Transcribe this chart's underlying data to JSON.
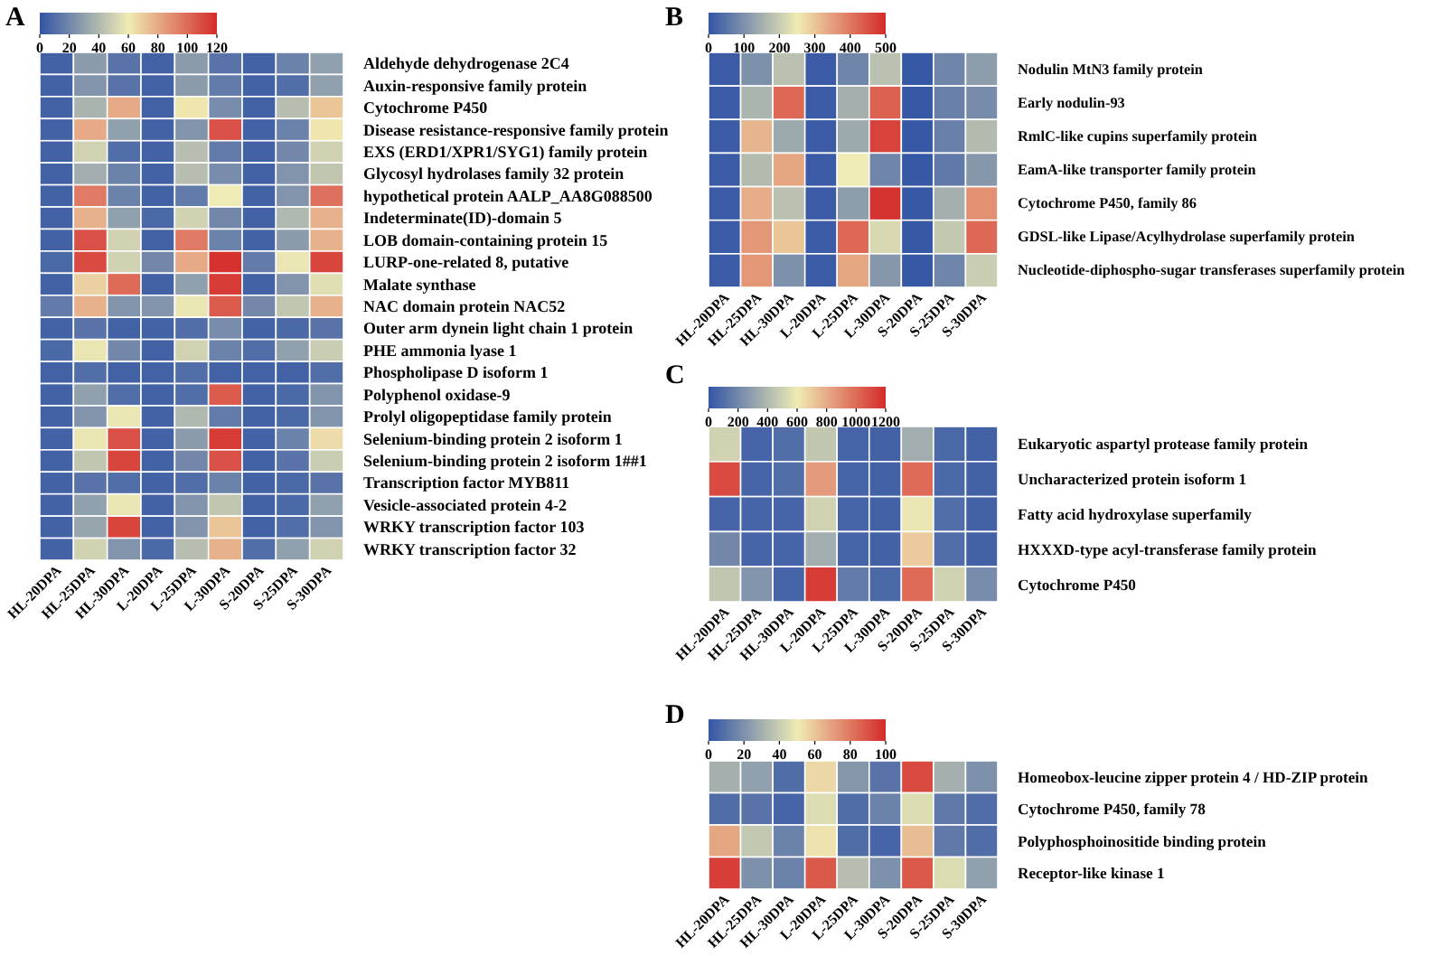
{
  "chart_data": [
    {
      "type": "heatmap",
      "title": "A",
      "categories": [
        "HL-20DPA",
        "HL-25DPA",
        "HL-30DPA",
        "L-20DPA",
        "L-25DPA",
        "L-30DPA",
        "S-20DPA",
        "S-25DPA",
        "S-30DPA"
      ],
      "y_categories": [
        "Aldehyde dehydrogenase 2C4",
        "Auxin-responsive family protein",
        "Cytochrome P450",
        "Disease resistance-responsive family protein",
        "EXS (ERD1/XPR1/SYG1) family protein",
        "Glycosyl hydrolases family 32 protein",
        "hypothetical protein AALP_AA8G088500",
        "Indeterminate(ID)-domain 5",
        "LOB domain-containing protein 15",
        "LURP-one-related 8, putative",
        "Malate synthase",
        "NAC domain protein NAC52",
        "Outer arm dynein light chain 1 protein",
        "PHE ammonia lyase 1",
        "Phospholipase D isoform 1",
        "Polyphenol oxidase-9",
        "Prolyl oligopeptidase family protein",
        "Selenium-binding protein 2 isoform 1",
        "Selenium-binding protein 2 isoform 1##1",
        "Transcription factor MYB811",
        "Vesicle-associated protein 4-2",
        "WRKY transcription factor 103",
        "WRKY transcription factor 32"
      ],
      "cells": [
        [
          5,
          28,
          12,
          5,
          28,
          12,
          5,
          18,
          30
        ],
        [
          5,
          25,
          12,
          5,
          28,
          15,
          5,
          10,
          30
        ],
        [
          5,
          38,
          80,
          5,
          62,
          22,
          5,
          42,
          72
        ],
        [
          5,
          80,
          30,
          5,
          25,
          108,
          5,
          18,
          62
        ],
        [
          5,
          50,
          10,
          5,
          42,
          15,
          5,
          20,
          50
        ],
        [
          5,
          35,
          18,
          5,
          42,
          22,
          5,
          25,
          45
        ],
        [
          5,
          95,
          18,
          5,
          15,
          60,
          5,
          25,
          98
        ],
        [
          5,
          78,
          30,
          8,
          50,
          20,
          5,
          40,
          78
        ],
        [
          5,
          108,
          50,
          5,
          95,
          18,
          5,
          28,
          78
        ],
        [
          8,
          110,
          50,
          20,
          80,
          118,
          15,
          58,
          112
        ],
        [
          5,
          68,
          100,
          5,
          30,
          115,
          5,
          25,
          55
        ],
        [
          15,
          78,
          25,
          25,
          58,
          105,
          20,
          45,
          78
        ],
        [
          5,
          12,
          5,
          5,
          10,
          22,
          5,
          8,
          12
        ],
        [
          8,
          58,
          20,
          5,
          50,
          18,
          10,
          30,
          48
        ],
        [
          5,
          10,
          5,
          5,
          10,
          5,
          5,
          5,
          10
        ],
        [
          5,
          30,
          10,
          5,
          10,
          105,
          5,
          8,
          25
        ],
        [
          5,
          25,
          58,
          5,
          40,
          15,
          5,
          8,
          25
        ],
        [
          5,
          58,
          108,
          5,
          28,
          115,
          5,
          18,
          65
        ],
        [
          5,
          45,
          112,
          5,
          20,
          108,
          5,
          12,
          48
        ],
        [
          5,
          12,
          10,
          5,
          10,
          18,
          5,
          8,
          12
        ],
        [
          5,
          30,
          58,
          5,
          25,
          45,
          5,
          8,
          30
        ],
        [
          5,
          32,
          112,
          5,
          25,
          72,
          5,
          10,
          25
        ],
        [
          5,
          50,
          25,
          8,
          42,
          78,
          10,
          30,
          50
        ]
      ],
      "clim": [
        0,
        120
      ],
      "cticks": [
        0,
        20,
        40,
        60,
        80,
        100,
        120
      ]
    },
    {
      "type": "heatmap",
      "title": "B",
      "categories": [
        "HL-20DPA",
        "HL-25DPA",
        "HL-30DPA",
        "L-20DPA",
        "L-25DPA",
        "L-30DPA",
        "S-20DPA",
        "S-25DPA",
        "S-30DPA"
      ],
      "y_categories": [
        "Nodulin MtN3 family protein",
        "Early nodulin-93",
        "RmlC-like cupins superfamily protein",
        "EamA-like transporter family protein",
        "Cytochrome P450, family 86",
        "GDSL-like Lipase/Acylhydrolase superfamily protein",
        "Nucleotide-diphospho-sugar transferases superfamily protein"
      ],
      "cells": [
        [
          10,
          100,
          180,
          10,
          80,
          180,
          5,
          80,
          120
        ],
        [
          10,
          160,
          420,
          10,
          150,
          430,
          5,
          70,
          90
        ],
        [
          10,
          320,
          140,
          10,
          140,
          470,
          5,
          70,
          170
        ],
        [
          10,
          170,
          340,
          10,
          250,
          80,
          5,
          60,
          110
        ],
        [
          10,
          330,
          180,
          10,
          120,
          490,
          5,
          150,
          370
        ],
        [
          10,
          360,
          300,
          10,
          420,
          220,
          5,
          190,
          420
        ],
        [
          10,
          360,
          100,
          10,
          340,
          110,
          5,
          80,
          200
        ]
      ],
      "clim": [
        0,
        500
      ],
      "cticks": [
        0,
        100,
        200,
        300,
        400,
        500
      ]
    },
    {
      "type": "heatmap",
      "title": "C",
      "categories": [
        "HL-20DPA",
        "HL-25DPA",
        "HL-30DPA",
        "L-20DPA",
        "L-25DPA",
        "L-30DPA",
        "S-20DPA",
        "S-25DPA",
        "S-30DPA"
      ],
      "y_categories": [
        "Eukaryotic aspartyl protease family protein",
        "Uncharacterized protein isoform 1",
        "Fatty acid hydroxylase superfamily",
        "HXXXD-type acyl-transferase family protein",
        "Cytochrome P450"
      ],
      "cells": [
        [
          500,
          60,
          100,
          450,
          60,
          50,
          350,
          80,
          50
        ],
        [
          1100,
          60,
          100,
          850,
          60,
          50,
          1000,
          80,
          50
        ],
        [
          60,
          60,
          60,
          500,
          60,
          50,
          580,
          100,
          50
        ],
        [
          200,
          60,
          60,
          350,
          60,
          50,
          700,
          100,
          50
        ],
        [
          450,
          250,
          60,
          1150,
          150,
          80,
          1000,
          500,
          220
        ]
      ],
      "clim": [
        0,
        1200
      ],
      "cticks": [
        0,
        200,
        400,
        600,
        800,
        1000,
        1200
      ]
    },
    {
      "type": "heatmap",
      "title": "D",
      "categories": [
        "HL-20DPA",
        "HL-25DPA",
        "HL-30DPA",
        "L-20DPA",
        "L-25DPA",
        "L-30DPA",
        "S-20DPA",
        "S-25DPA",
        "S-30DPA"
      ],
      "y_categories": [
        "Homeobox-leucine zipper protein 4 / HD-ZIP protein",
        "Cytochrome P450, family 78",
        "Polyphosphoinositide binding protein",
        "Receptor-like kinase 1"
      ],
      "cells": [
        [
          30,
          25,
          8,
          55,
          22,
          10,
          92,
          30,
          20
        ],
        [
          8,
          10,
          5,
          45,
          8,
          15,
          45,
          12,
          8
        ],
        [
          68,
          38,
          15,
          52,
          8,
          5,
          62,
          12,
          8
        ],
        [
          95,
          20,
          15,
          88,
          35,
          20,
          88,
          45,
          25
        ]
      ],
      "clim": [
        0,
        100
      ],
      "cticks": [
        0,
        20,
        40,
        60,
        80,
        100
      ]
    }
  ]
}
